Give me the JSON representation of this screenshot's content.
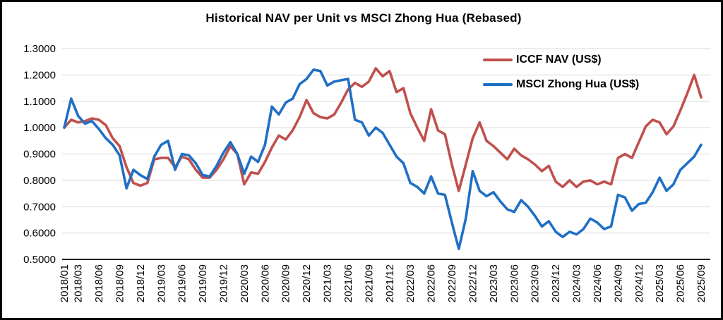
{
  "chart_data": {
    "type": "line",
    "title": "Historical NAV per Unit vs MSCI Zhong Hua (Rebased)",
    "xlabel": "",
    "ylabel": "",
    "ylim": [
      0.5,
      1.3
    ],
    "y_ticks": [
      "1.3000",
      "1.2000",
      "1.1000",
      "1.0000",
      "0.9000",
      "0.8000",
      "0.7000",
      "0.6000",
      "0.5000"
    ],
    "grid": "horizontal",
    "legend_position": "top-right",
    "n_points": 93,
    "x_start": "2018/01",
    "x_end": "2025/09",
    "x_tick_labels": [
      "2018/01",
      "2018/03",
      "2018/06",
      "2018/09",
      "2018/12",
      "2019/03",
      "2019/06",
      "2019/09",
      "2019/12",
      "2020/03",
      "2020/06",
      "2020/09",
      "2020/12",
      "2021/03",
      "2021/06",
      "2021/09",
      "2021/12",
      "2022/03",
      "2022/06",
      "2022/09",
      "2022/12",
      "2023/03",
      "2023/06",
      "2023/09",
      "2023/12",
      "2024/03",
      "2024/06",
      "2024/09",
      "2024/12",
      "2025/03",
      "2025/06",
      "2025/09"
    ],
    "x_tick_indices": [
      0,
      2,
      5,
      8,
      11,
      14,
      17,
      20,
      23,
      26,
      29,
      32,
      35,
      38,
      41,
      44,
      47,
      50,
      53,
      56,
      59,
      62,
      65,
      68,
      71,
      74,
      77,
      80,
      83,
      86,
      89,
      92
    ],
    "series": [
      {
        "name": "ICCF NAV (US$)",
        "color": "#C0504D",
        "values": [
          1.0,
          1.03,
          1.02,
          1.025,
          1.035,
          1.03,
          1.01,
          0.96,
          0.93,
          0.85,
          0.79,
          0.78,
          0.79,
          0.88,
          0.885,
          0.885,
          0.85,
          0.89,
          0.88,
          0.84,
          0.81,
          0.81,
          0.84,
          0.88,
          0.93,
          0.9,
          0.785,
          0.83,
          0.825,
          0.87,
          0.925,
          0.97,
          0.955,
          0.99,
          1.04,
          1.105,
          1.055,
          1.04,
          1.035,
          1.05,
          1.095,
          1.145,
          1.17,
          1.155,
          1.175,
          1.225,
          1.195,
          1.215,
          1.135,
          1.15,
          1.055,
          1.0,
          0.95,
          1.07,
          0.99,
          0.975,
          0.86,
          0.76,
          0.86,
          0.96,
          1.02,
          0.95,
          0.93,
          0.905,
          0.88,
          0.92,
          0.895,
          0.88,
          0.86,
          0.835,
          0.855,
          0.795,
          0.775,
          0.8,
          0.775,
          0.795,
          0.8,
          0.785,
          0.795,
          0.785,
          0.885,
          0.9,
          0.885,
          0.945,
          1.005,
          1.03,
          1.02,
          0.975,
          1.005,
          1.065,
          1.13,
          1.2,
          1.115
        ]
      },
      {
        "name": "MSCI Zhong Hua (US$)",
        "color": "#1F6FC5",
        "values": [
          1.0,
          1.11,
          1.045,
          1.015,
          1.025,
          0.995,
          0.96,
          0.935,
          0.895,
          0.77,
          0.84,
          0.82,
          0.805,
          0.89,
          0.935,
          0.95,
          0.84,
          0.9,
          0.895,
          0.865,
          0.82,
          0.815,
          0.855,
          0.905,
          0.945,
          0.9,
          0.825,
          0.89,
          0.87,
          0.935,
          1.08,
          1.05,
          1.095,
          1.11,
          1.165,
          1.185,
          1.22,
          1.215,
          1.16,
          1.175,
          1.18,
          1.185,
          1.03,
          1.02,
          0.97,
          1.0,
          0.98,
          0.935,
          0.89,
          0.865,
          0.79,
          0.775,
          0.75,
          0.815,
          0.75,
          0.745,
          0.64,
          0.54,
          0.655,
          0.835,
          0.76,
          0.74,
          0.755,
          0.72,
          0.69,
          0.68,
          0.725,
          0.7,
          0.665,
          0.625,
          0.645,
          0.605,
          0.585,
          0.605,
          0.595,
          0.615,
          0.655,
          0.64,
          0.615,
          0.625,
          0.745,
          0.735,
          0.685,
          0.71,
          0.715,
          0.755,
          0.81,
          0.76,
          0.785,
          0.84,
          0.865,
          0.89,
          0.935
        ]
      }
    ],
    "colors": {
      "gridline": "#D9D9D9",
      "axis": "#000000",
      "text": "#000000",
      "background": "#FFFFFF"
    }
  }
}
